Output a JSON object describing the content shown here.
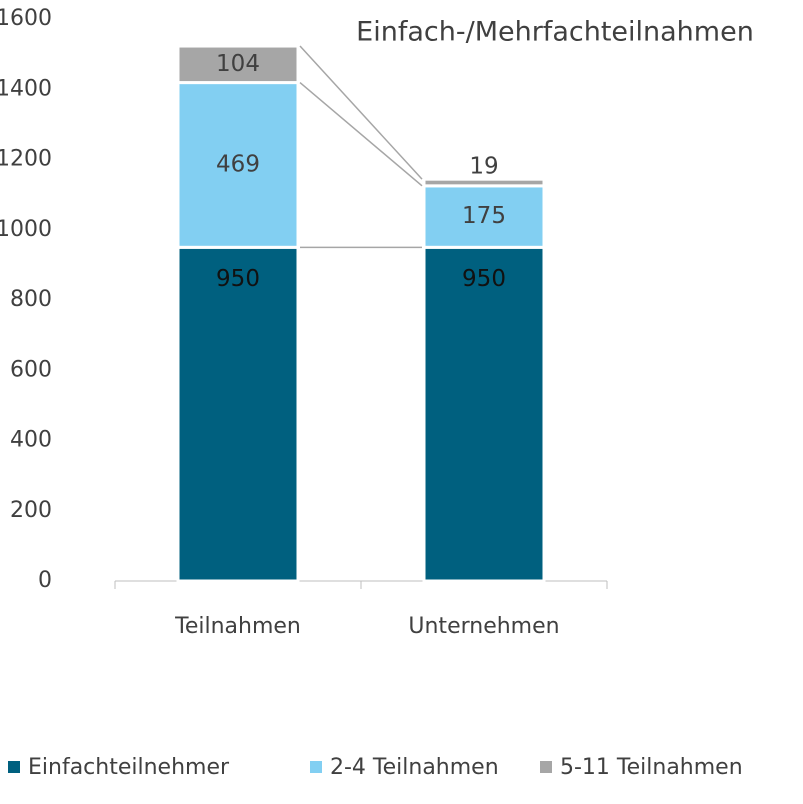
{
  "chart_data": {
    "type": "stacked_bar",
    "title": "Einfach-/Mehrfachteilnahmen",
    "categories": [
      "Teilnahmen",
      "Unternehmen"
    ],
    "series": [
      {
        "name": "Einfachteilnehmer",
        "color": "#00607f",
        "values": [
          950,
          950
        ]
      },
      {
        "name": "2-4 Teilnahmen",
        "color": "#82cff2",
        "values": [
          469,
          175
        ]
      },
      {
        "name": "5-11 Teilnahmen",
        "color": "#a6a6a6",
        "values": [
          104,
          19
        ]
      }
    ],
    "ylim": [
      0,
      1600
    ],
    "yticks": [
      0,
      200,
      400,
      600,
      800,
      1000,
      1200,
      1400,
      1600
    ],
    "legend": "bottom"
  }
}
